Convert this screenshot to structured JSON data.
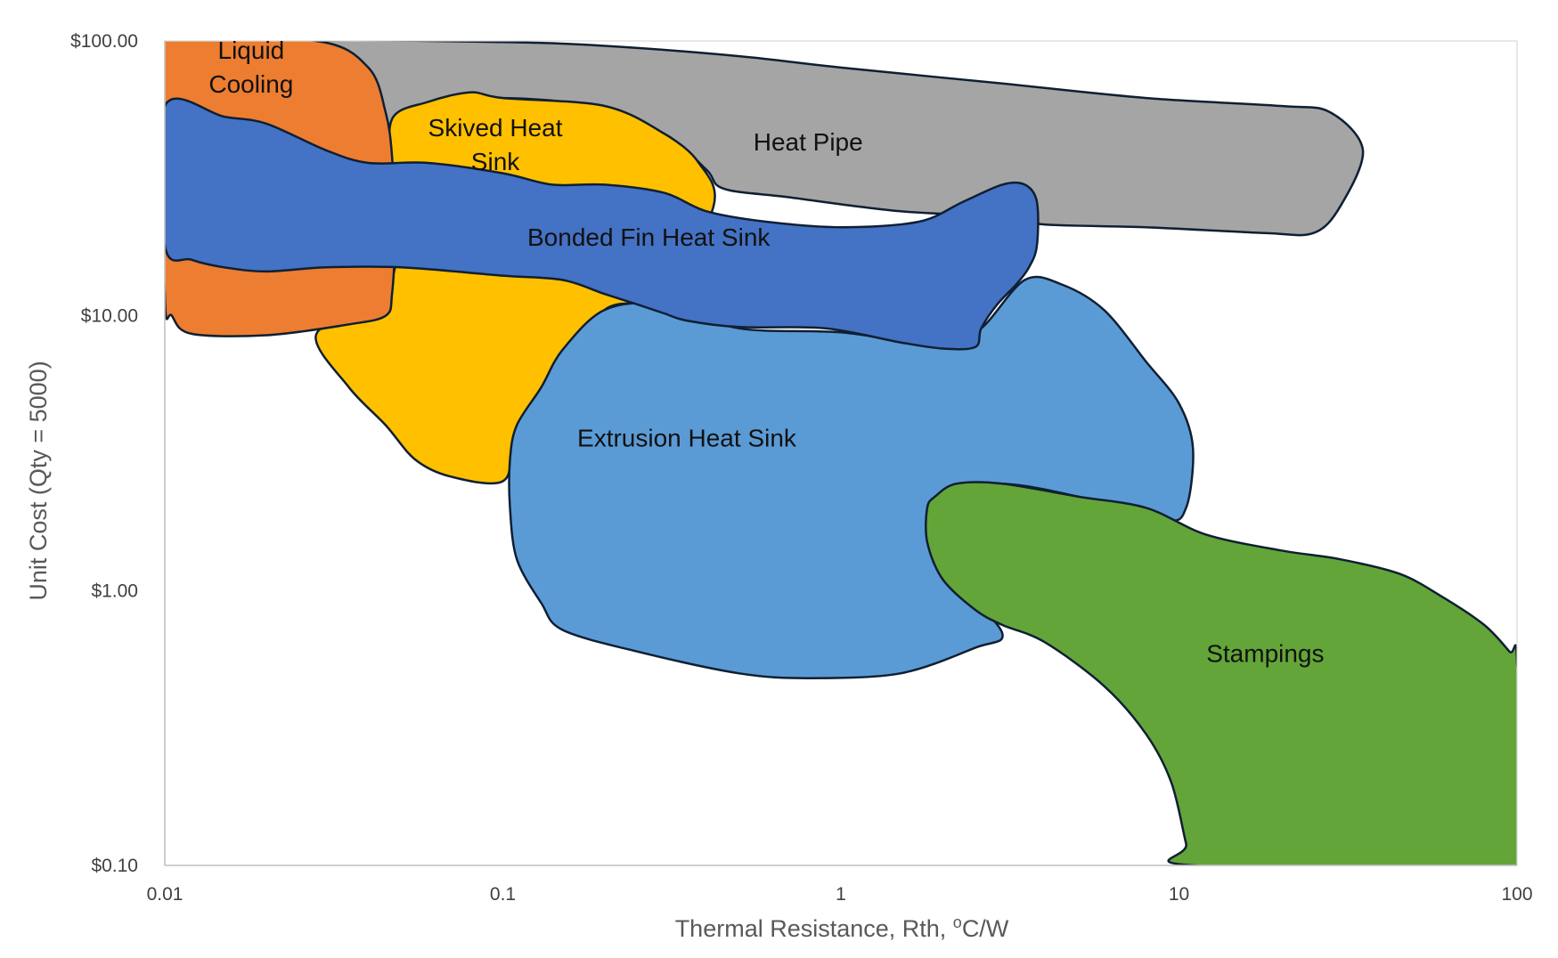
{
  "chart_data": {
    "type": "area",
    "title": "",
    "xlabel": "Thermal Resistance, Rth, ",
    "xlabel_sup": "o",
    "xlabel_unit": "C/W",
    "ylabel": "Unit Cost (Qty = 5000)",
    "x_scale": "log",
    "y_scale": "log",
    "xlim": [
      0.01,
      100
    ],
    "ylim": [
      0.1,
      100
    ],
    "x_ticks": [
      {
        "value": 0.01,
        "label": "0.01"
      },
      {
        "value": 0.1,
        "label": "0.1"
      },
      {
        "value": 1,
        "label": "1"
      },
      {
        "value": 10,
        "label": "10"
      },
      {
        "value": 100,
        "label": "100"
      }
    ],
    "y_ticks": [
      {
        "value": 0.1,
        "label": "$0.10"
      },
      {
        "value": 1,
        "label": "$1.00"
      },
      {
        "value": 10,
        "label": "$10.00"
      },
      {
        "value": 100,
        "label": "$100.00"
      }
    ],
    "grid": false,
    "legend": "none",
    "regions": [
      {
        "id": "heat-pipe",
        "label": [
          "Heat Pipe"
        ],
        "color": "#a5a5a5",
        "label_at": [
          0.8,
          40
        ],
        "outline": [
          [
            0.028,
            100
          ],
          [
            0.1,
            99
          ],
          [
            0.2,
            96
          ],
          [
            0.5,
            88
          ],
          [
            1,
            80
          ],
          [
            3,
            70
          ],
          [
            8,
            62
          ],
          [
            20,
            58
          ],
          [
            28,
            55
          ],
          [
            35,
            40
          ],
          [
            30,
            25
          ],
          [
            25,
            20
          ],
          [
            18,
            20
          ],
          [
            8,
            21
          ],
          [
            4,
            21.5
          ],
          [
            3,
            23
          ],
          [
            1.5,
            24
          ],
          [
            0.7,
            27
          ],
          [
            0.45,
            29
          ],
          [
            0.4,
            34
          ],
          [
            0.3,
            46
          ],
          [
            0.18,
            58
          ],
          [
            0.1,
            62
          ],
          [
            0.07,
            59
          ],
          [
            0.05,
            52
          ],
          [
            0.047,
            45
          ],
          [
            0.04,
            65
          ],
          [
            0.033,
            90
          ],
          [
            0.028,
            100
          ]
        ]
      },
      {
        "id": "skived-heat-sink",
        "label": [
          "Skived Heat",
          "Sink"
        ],
        "color": "#ffc000",
        "label_at": [
          0.095,
          45
        ],
        "outline": [
          [
            0.047,
            52
          ],
          [
            0.06,
            60
          ],
          [
            0.08,
            65
          ],
          [
            0.1,
            62
          ],
          [
            0.2,
            58
          ],
          [
            0.3,
            46
          ],
          [
            0.38,
            36
          ],
          [
            0.42,
            25
          ],
          [
            0.3,
            12
          ],
          [
            0.2,
            10.5
          ],
          [
            0.15,
            6
          ],
          [
            0.11,
            3.5
          ],
          [
            0.1,
            2.5
          ],
          [
            0.07,
            2.6
          ],
          [
            0.055,
            3
          ],
          [
            0.045,
            4
          ],
          [
            0.035,
            5.5
          ],
          [
            0.028,
            8.5
          ],
          [
            0.04,
            11
          ],
          [
            0.048,
            15
          ],
          [
            0.047,
            32
          ],
          [
            0.047,
            52
          ]
        ]
      },
      {
        "id": "liquid-cooling",
        "label": [
          "Liquid",
          "Cooling"
        ],
        "color": "#ed7d31",
        "label_at": [
          0.018,
          86
        ],
        "outline": [
          [
            0.01,
            100
          ],
          [
            0.028,
            100
          ],
          [
            0.04,
            80
          ],
          [
            0.045,
            55
          ],
          [
            0.047,
            38
          ],
          [
            0.048,
            20
          ],
          [
            0.047,
            12
          ],
          [
            0.045,
            10
          ],
          [
            0.035,
            9.3
          ],
          [
            0.02,
            8.5
          ],
          [
            0.012,
            8.6
          ],
          [
            0.0105,
            10
          ],
          [
            0.01,
            12
          ],
          [
            0.01,
            100
          ]
        ]
      },
      {
        "id": "extrusion-heat-sink",
        "label": [
          "Extrusion Heat Sink"
        ],
        "color": "#5b9bd5",
        "label_at": [
          0.35,
          3.35
        ],
        "outline": [
          [
            0.2,
            10.5
          ],
          [
            0.3,
            11
          ],
          [
            0.5,
            9
          ],
          [
            1,
            8.7
          ],
          [
            2,
            7.8
          ],
          [
            2.6,
            9
          ],
          [
            3.5,
            13.5
          ],
          [
            4.5,
            13
          ],
          [
            6,
            10.5
          ],
          [
            8,
            6.8
          ],
          [
            10,
            4.8
          ],
          [
            11,
            3.3
          ],
          [
            10.5,
            2
          ],
          [
            9,
            1.8
          ],
          [
            5,
            2.2
          ],
          [
            3,
            2.45
          ],
          [
            2,
            2.3
          ],
          [
            1.8,
            1.7
          ],
          [
            2.2,
            1.1
          ],
          [
            3,
            0.7
          ],
          [
            2.5,
            0.62
          ],
          [
            1.5,
            0.5
          ],
          [
            0.8,
            0.48
          ],
          [
            0.5,
            0.5
          ],
          [
            0.25,
            0.6
          ],
          [
            0.15,
            0.72
          ],
          [
            0.13,
            0.9
          ],
          [
            0.11,
            1.3
          ],
          [
            0.105,
            2
          ],
          [
            0.105,
            3
          ],
          [
            0.11,
            4
          ],
          [
            0.13,
            5.5
          ],
          [
            0.15,
            7.5
          ],
          [
            0.2,
            10.5
          ]
        ]
      },
      {
        "id": "bonded-fin-heat-sink",
        "label": [
          "Bonded Fin Heat Sink"
        ],
        "color": "#4472c4",
        "label_at": [
          0.27,
          18
        ],
        "outline": [
          [
            0.01,
            58
          ],
          [
            0.015,
            53
          ],
          [
            0.02,
            50
          ],
          [
            0.03,
            40
          ],
          [
            0.04,
            36
          ],
          [
            0.06,
            36
          ],
          [
            0.1,
            33
          ],
          [
            0.14,
            30
          ],
          [
            0.2,
            30
          ],
          [
            0.3,
            28
          ],
          [
            0.4,
            24
          ],
          [
            0.6,
            22
          ],
          [
            1,
            21
          ],
          [
            1.7,
            22
          ],
          [
            2.3,
            26
          ],
          [
            3,
            30
          ],
          [
            3.5,
            30
          ],
          [
            3.8,
            26
          ],
          [
            3.8,
            18
          ],
          [
            3.6,
            15
          ],
          [
            3.3,
            13
          ],
          [
            2.9,
            11
          ],
          [
            2.6,
            9
          ],
          [
            2.5,
            7.7
          ],
          [
            2,
            7.6
          ],
          [
            1.5,
            8
          ],
          [
            0.9,
            9
          ],
          [
            0.5,
            9.1
          ],
          [
            0.35,
            9.6
          ],
          [
            0.3,
            10.2
          ],
          [
            0.25,
            11
          ],
          [
            0.2,
            12
          ],
          [
            0.15,
            13.5
          ],
          [
            0.1,
            14
          ],
          [
            0.05,
            15
          ],
          [
            0.03,
            15
          ],
          [
            0.02,
            14.5
          ],
          [
            0.015,
            15
          ],
          [
            0.012,
            16
          ],
          [
            0.01,
            18
          ],
          [
            0.01,
            58
          ]
        ]
      },
      {
        "id": "stampings",
        "label": [
          "Stampings"
        ],
        "color": "#63a538",
        "label_at": [
          18,
          0.55
        ],
        "outline": [
          [
            1.9,
            2.2
          ],
          [
            2.2,
            2.45
          ],
          [
            3,
            2.45
          ],
          [
            5,
            2.2
          ],
          [
            8,
            2
          ],
          [
            12,
            1.6
          ],
          [
            20,
            1.4
          ],
          [
            30,
            1.3
          ],
          [
            45,
            1.15
          ],
          [
            60,
            0.95
          ],
          [
            80,
            0.75
          ],
          [
            95,
            0.6
          ],
          [
            100,
            0.55
          ],
          [
            100,
            0.1
          ],
          [
            11,
            0.1
          ],
          [
            10.5,
            0.12
          ],
          [
            9.5,
            0.2
          ],
          [
            8,
            0.3
          ],
          [
            6,
            0.45
          ],
          [
            4,
            0.65
          ],
          [
            3,
            0.75
          ],
          [
            2.5,
            0.85
          ],
          [
            2,
            1.1
          ],
          [
            1.8,
            1.5
          ],
          [
            1.8,
            2
          ],
          [
            1.9,
            2.2
          ]
        ]
      }
    ]
  }
}
